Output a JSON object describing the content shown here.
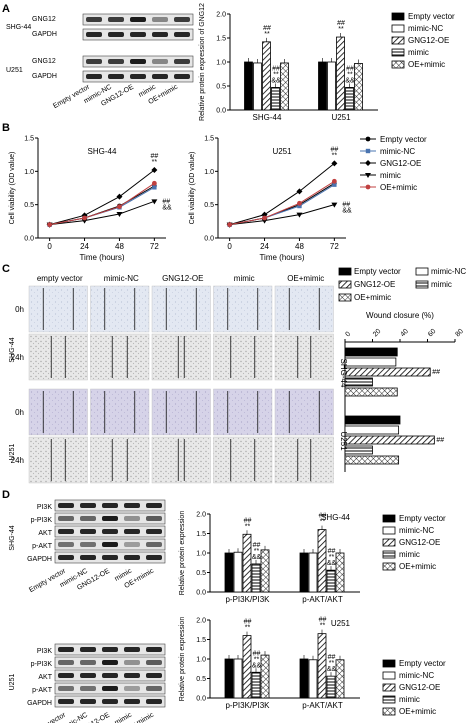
{
  "panel_labels": [
    "A",
    "B",
    "C",
    "D"
  ],
  "groups": [
    "Empty vector",
    "mimic-NC",
    "GNG12-OE",
    "mimic",
    "OE+mimic"
  ],
  "colors": {
    "empty": "#000000",
    "nc": "#ffffff",
    "oe": "#888888",
    "mimic": "#ffffff",
    "oemimic": "#ffffff"
  },
  "panelA": {
    "blot_cell_lines": [
      "SHG-44",
      "U251"
    ],
    "blot_proteins": [
      "GNG12",
      "GAPDH"
    ],
    "blot_lanes": [
      "Empty vector",
      "mimic-NC",
      "GNG12-OE",
      "mimic",
      "OE+mimic"
    ],
    "ylabel": "Relative protein expression of GNG12",
    "sig": {
      "oe": "##\n**",
      "mimic": "&&\n##\n**"
    }
  },
  "panelB": {
    "titles": [
      "SHG-44",
      "U251"
    ],
    "ylabel": "Cell viability (OD value)",
    "xlabel": "Time (hours)"
  },
  "panelC": {
    "columns": [
      "empty vector",
      "mimic-NC",
      "GNG12-OE",
      "mimic",
      "OE+mimic"
    ],
    "rows": [
      "0h",
      "24h",
      "0h",
      "24h"
    ],
    "cell_lines": [
      "SHG-44",
      "U251"
    ],
    "xlabel": "Wound closure (%)"
  },
  "panelD": {
    "titles": [
      "SHG-44",
      "U251"
    ],
    "blot_proteins": [
      "PI3K",
      "p-PI3K",
      "AKT",
      "p-AKT",
      "GAPDH"
    ],
    "blot_lanes": [
      "Empty vector",
      "mimic-NC",
      "GNG12-OE",
      "mimic",
      "OE+mimic"
    ],
    "ylabel": "Relative protein expression",
    "categories": [
      "p-PI3K/PI3K",
      "p-AKT/AKT"
    ]
  },
  "chart_data": [
    {
      "type": "bar",
      "id": "A",
      "categories": [
        "SHG-44",
        "U251"
      ],
      "series": [
        {
          "name": "Empty vector",
          "values": [
            1.0,
            1.0
          ]
        },
        {
          "name": "mimic-NC",
          "values": [
            0.98,
            1.0
          ]
        },
        {
          "name": "GNG12-OE",
          "values": [
            1.42,
            1.52
          ]
        },
        {
          "name": "mimic",
          "values": [
            0.47,
            0.47
          ]
        },
        {
          "name": "OE+mimic",
          "values": [
            0.98,
            0.97
          ]
        }
      ],
      "ylabel": "Relative protein expression of GNG12",
      "ylim": [
        0,
        2.0
      ],
      "yticks": [
        0.0,
        0.5,
        1.0,
        1.5,
        2.0
      ]
    },
    {
      "type": "line",
      "id": "B1",
      "title": "SHG-44",
      "x": [
        0,
        24,
        48,
        72
      ],
      "series": [
        {
          "name": "Empty vector",
          "values": [
            0.2,
            0.3,
            0.48,
            0.78
          ]
        },
        {
          "name": "mimic-NC",
          "values": [
            0.2,
            0.3,
            0.46,
            0.76
          ]
        },
        {
          "name": "GNG12-OE",
          "values": [
            0.2,
            0.34,
            0.62,
            1.02
          ]
        },
        {
          "name": "mimic",
          "values": [
            0.2,
            0.26,
            0.36,
            0.55
          ]
        },
        {
          "name": "OE+mimic",
          "values": [
            0.2,
            0.3,
            0.47,
            0.82
          ]
        }
      ],
      "xlabel": "Time (hours)",
      "ylabel": "Cell viability (OD value)",
      "ylim": [
        0,
        1.5
      ],
      "yticks": [
        0.0,
        0.5,
        1.0,
        1.5
      ],
      "xticks": [
        0,
        24,
        48,
        72
      ]
    },
    {
      "type": "line",
      "id": "B2",
      "title": "U251",
      "x": [
        0,
        24,
        48,
        72
      ],
      "series": [
        {
          "name": "Empty vector",
          "values": [
            0.2,
            0.3,
            0.5,
            0.82
          ]
        },
        {
          "name": "mimic-NC",
          "values": [
            0.2,
            0.3,
            0.48,
            0.8
          ]
        },
        {
          "name": "GNG12-OE",
          "values": [
            0.2,
            0.35,
            0.7,
            1.12
          ]
        },
        {
          "name": "mimic",
          "values": [
            0.2,
            0.26,
            0.35,
            0.5
          ]
        },
        {
          "name": "OE+mimic",
          "values": [
            0.2,
            0.3,
            0.52,
            0.85
          ]
        }
      ],
      "xlabel": "Time (hours)",
      "ylabel": "Cell viability (OD value)",
      "ylim": [
        0,
        1.5
      ],
      "yticks": [
        0.0,
        0.5,
        1.0,
        1.5
      ],
      "xticks": [
        0,
        24,
        48,
        72
      ]
    },
    {
      "type": "bar",
      "id": "C",
      "orientation": "horizontal",
      "categories": [
        "SHG-44",
        "U251"
      ],
      "series": [
        {
          "name": "Empty vector",
          "values": [
            38,
            40
          ]
        },
        {
          "name": "mimic-NC",
          "values": [
            37,
            39
          ]
        },
        {
          "name": "GNG12-OE",
          "values": [
            62,
            65
          ]
        },
        {
          "name": "mimic",
          "values": [
            20,
            20
          ]
        },
        {
          "name": "OE+mimic",
          "values": [
            38,
            39
          ]
        }
      ],
      "xlabel": "Wound closure (%)",
      "xlim": [
        0,
        80
      ],
      "xticks": [
        0,
        20,
        40,
        60,
        80
      ]
    },
    {
      "type": "bar",
      "id": "D1",
      "title": "SHG-44",
      "categories": [
        "p-PI3K/PI3K",
        "p-AKT/AKT"
      ],
      "series": [
        {
          "name": "Empty vector",
          "values": [
            1.0,
            1.0
          ]
        },
        {
          "name": "mimic-NC",
          "values": [
            1.02,
            1.0
          ]
        },
        {
          "name": "GNG12-OE",
          "values": [
            1.48,
            1.6
          ]
        },
        {
          "name": "mimic",
          "values": [
            0.72,
            0.56
          ]
        },
        {
          "name": "OE+mimic",
          "values": [
            1.08,
            1.0
          ]
        }
      ],
      "ylabel": "Relative protein expression",
      "ylim": [
        0,
        2.0
      ],
      "yticks": [
        0.0,
        0.5,
        1.0,
        1.5,
        2.0
      ]
    },
    {
      "type": "bar",
      "id": "D2",
      "title": "U251",
      "categories": [
        "p-PI3K/PI3K",
        "p-AKT/AKT"
      ],
      "series": [
        {
          "name": "Empty vector",
          "values": [
            1.0,
            1.0
          ]
        },
        {
          "name": "mimic-NC",
          "values": [
            1.0,
            0.98
          ]
        },
        {
          "name": "GNG12-OE",
          "values": [
            1.6,
            1.65
          ]
        },
        {
          "name": "mimic",
          "values": [
            0.66,
            0.56
          ]
        },
        {
          "name": "OE+mimic",
          "values": [
            1.1,
            0.98
          ]
        }
      ],
      "ylabel": "Relative protein expression",
      "ylim": [
        0,
        2.0
      ],
      "yticks": [
        0.0,
        0.5,
        1.0,
        1.5,
        2.0
      ]
    }
  ]
}
